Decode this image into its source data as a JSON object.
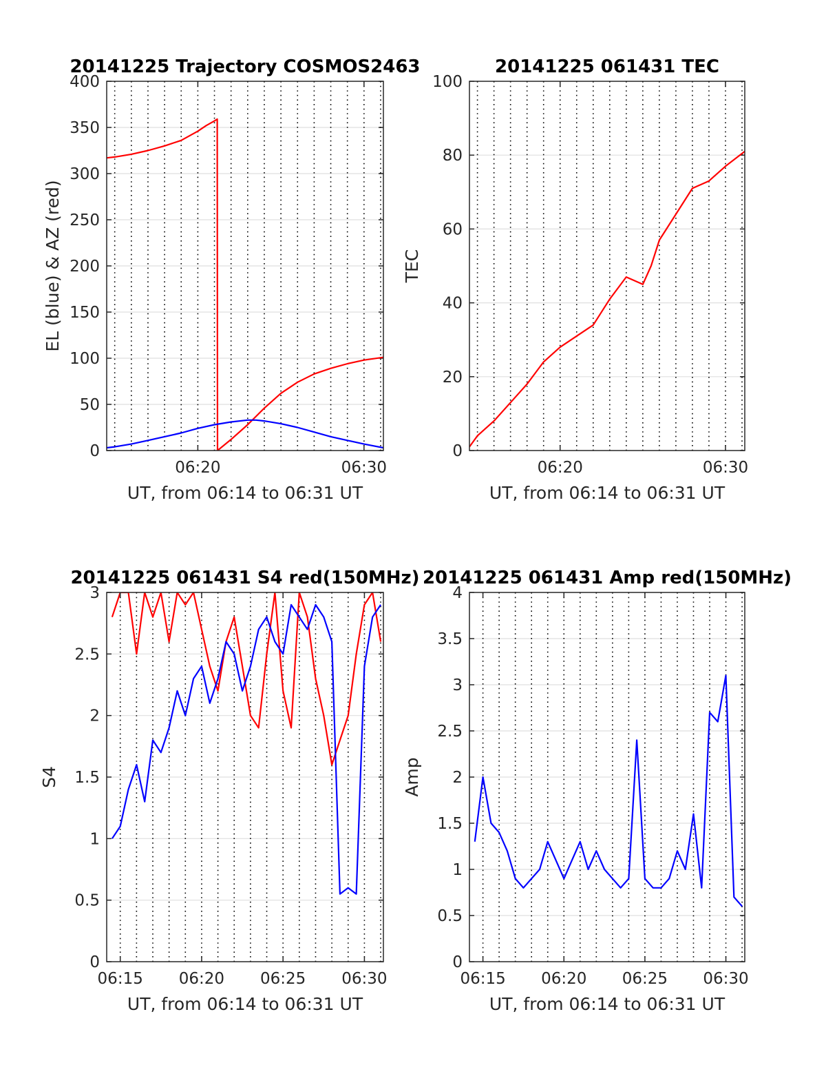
{
  "chart_data": [
    {
      "type": "line",
      "title": "20141225 Trajectory COSMOS2463",
      "xlabel": "UT, from 06:14 to 06:31 UT",
      "ylabel": "EL (blue) & AZ (red)",
      "xlim": [
        "06:14:31",
        "06:31:10"
      ],
      "ylim": [
        0,
        400
      ],
      "yticks": [
        "0",
        "50",
        "100",
        "150",
        "200",
        "250",
        "300",
        "350",
        "400"
      ],
      "xticks": [
        {
          "t": "06:20",
          "label": "06:20"
        },
        {
          "t": "06:30",
          "label": "06:30"
        }
      ],
      "series": [
        {
          "color": "#ff0000",
          "x": [
            "06:14:31",
            "06:15:00",
            "06:16:00",
            "06:17:00",
            "06:18:00",
            "06:19:00",
            "06:20:00",
            "06:20:30",
            "06:21:00",
            "06:21:10",
            "06:21:11",
            "06:22:00",
            "06:23:00",
            "06:24:00",
            "06:25:00",
            "06:26:00",
            "06:27:00",
            "06:28:00",
            "06:29:00",
            "06:30:00",
            "06:31:10"
          ],
          "y": [
            317,
            318,
            321,
            325,
            330,
            336,
            346,
            352,
            357,
            359,
            0,
            12,
            28,
            46,
            62,
            74,
            83,
            89,
            94,
            98,
            101
          ]
        },
        {
          "color": "#0000ff",
          "x": [
            "06:14:31",
            "06:15:00",
            "06:16:00",
            "06:17:00",
            "06:18:00",
            "06:19:00",
            "06:20:00",
            "06:21:00",
            "06:22:00",
            "06:23:00",
            "06:23:30",
            "06:24:00",
            "06:25:00",
            "06:26:00",
            "06:27:00",
            "06:28:00",
            "06:29:00",
            "06:30:00",
            "06:31:10"
          ],
          "y": [
            3,
            4,
            7,
            11,
            15,
            19,
            24,
            28,
            31,
            33,
            33,
            32,
            29,
            25,
            20,
            15,
            11,
            7,
            3
          ]
        }
      ]
    },
    {
      "type": "line",
      "title": "20141225 061431 TEC",
      "xlabel": "UT, from 06:14 to 06:31 UT",
      "ylabel": "TEC",
      "xlim": [
        "06:14:31",
        "06:31:10"
      ],
      "ylim": [
        0,
        100
      ],
      "yticks": [
        "0",
        "20",
        "40",
        "60",
        "80",
        "100"
      ],
      "xticks": [
        {
          "t": "06:20",
          "label": "06:20"
        },
        {
          "t": "06:30",
          "label": "06:30"
        }
      ],
      "series": [
        {
          "color": "#ff0000",
          "x": [
            "06:14:31",
            "06:15:00",
            "06:16:00",
            "06:17:00",
            "06:18:00",
            "06:19:00",
            "06:20:00",
            "06:21:00",
            "06:22:00",
            "06:23:00",
            "06:24:00",
            "06:25:00",
            "06:25:30",
            "06:26:00",
            "06:27:00",
            "06:28:00",
            "06:29:00",
            "06:30:00",
            "06:31:10"
          ],
          "y": [
            1,
            4,
            8,
            13,
            18,
            24,
            28,
            31,
            34,
            41,
            47,
            45,
            50,
            57,
            64,
            71,
            73,
            77,
            81
          ]
        }
      ]
    },
    {
      "type": "line",
      "title": "20141225 061431 S4 red(150MHz)",
      "xlabel": "UT, from 06:14 to 06:31 UT",
      "ylabel": "S4",
      "xlim": [
        "06:14:10",
        "06:31:10"
      ],
      "ylim": [
        0,
        3
      ],
      "yticks": [
        "0",
        "0.5",
        "1",
        "1.5",
        "2",
        "2.5",
        "3"
      ],
      "xticks": [
        {
          "t": "06:15",
          "label": "06:15"
        },
        {
          "t": "06:20",
          "label": "06:20"
        },
        {
          "t": "06:25",
          "label": "06:25"
        },
        {
          "t": "06:30",
          "label": "06:30"
        }
      ],
      "series": [
        {
          "color": "#ff0000",
          "x": [
            "06:14:30",
            "06:15:00",
            "06:15:30",
            "06:16:00",
            "06:16:30",
            "06:17:00",
            "06:17:30",
            "06:18:00",
            "06:18:30",
            "06:19:00",
            "06:19:30",
            "06:20:00",
            "06:20:30",
            "06:21:00",
            "06:21:30",
            "06:22:00",
            "06:22:30",
            "06:23:00",
            "06:23:30",
            "06:24:00",
            "06:24:30",
            "06:25:00",
            "06:25:30",
            "06:26:00",
            "06:26:30",
            "06:27:00",
            "06:27:30",
            "06:28:00",
            "06:28:30",
            "06:29:00",
            "06:29:30",
            "06:30:00",
            "06:30:30",
            "06:31:00"
          ],
          "y": [
            2.8,
            3.0,
            3.0,
            2.5,
            3.0,
            2.8,
            3.0,
            2.6,
            3.0,
            2.9,
            3.0,
            2.7,
            2.4,
            2.2,
            2.6,
            2.8,
            2.4,
            2.0,
            1.9,
            2.5,
            3.0,
            2.2,
            1.9,
            3.0,
            2.8,
            2.3,
            2.0,
            1.6,
            1.8,
            2.0,
            2.5,
            2.9,
            3.0,
            2.6
          ]
        },
        {
          "color": "#0000ff",
          "x": [
            "06:14:30",
            "06:15:00",
            "06:15:30",
            "06:16:00",
            "06:16:30",
            "06:17:00",
            "06:17:30",
            "06:18:00",
            "06:18:30",
            "06:19:00",
            "06:19:30",
            "06:20:00",
            "06:20:30",
            "06:21:00",
            "06:21:30",
            "06:22:00",
            "06:22:30",
            "06:23:00",
            "06:23:30",
            "06:24:00",
            "06:24:30",
            "06:25:00",
            "06:25:30",
            "06:26:00",
            "06:26:30",
            "06:27:00",
            "06:27:30",
            "06:28:00",
            "06:28:30",
            "06:29:00",
            "06:29:30",
            "06:30:00",
            "06:30:30",
            "06:31:00"
          ],
          "y": [
            1.0,
            1.1,
            1.4,
            1.6,
            1.3,
            1.8,
            1.7,
            1.9,
            2.2,
            2.0,
            2.3,
            2.4,
            2.1,
            2.3,
            2.6,
            2.5,
            2.2,
            2.4,
            2.7,
            2.8,
            2.6,
            2.5,
            2.9,
            2.8,
            2.7,
            2.9,
            2.8,
            2.6,
            0.55,
            0.6,
            0.55,
            2.4,
            2.8,
            2.9
          ]
        }
      ]
    },
    {
      "type": "line",
      "title": "20141225 061431 Amp red(150MHz)",
      "xlabel": "UT, from 06:14 to 06:31 UT",
      "ylabel": "Amp",
      "xlim": [
        "06:14:10",
        "06:31:10"
      ],
      "ylim": [
        0,
        4
      ],
      "yticks": [
        "0",
        "0.5",
        "1",
        "1.5",
        "2",
        "2.5",
        "3",
        "3.5",
        "4"
      ],
      "xticks": [
        {
          "t": "06:15",
          "label": "06:15"
        },
        {
          "t": "06:20",
          "label": "06:20"
        },
        {
          "t": "06:25",
          "label": "06:25"
        },
        {
          "t": "06:30",
          "label": "06:30"
        }
      ],
      "series": [
        {
          "color": "#0000ff",
          "x": [
            "06:14:30",
            "06:15:00",
            "06:15:30",
            "06:16:00",
            "06:16:30",
            "06:17:00",
            "06:17:30",
            "06:18:00",
            "06:18:30",
            "06:19:00",
            "06:19:30",
            "06:20:00",
            "06:20:30",
            "06:21:00",
            "06:21:30",
            "06:22:00",
            "06:22:30",
            "06:23:00",
            "06:23:30",
            "06:24:00",
            "06:24:30",
            "06:25:00",
            "06:25:30",
            "06:26:00",
            "06:26:30",
            "06:27:00",
            "06:27:30",
            "06:28:00",
            "06:28:30",
            "06:29:00",
            "06:29:30",
            "06:30:00",
            "06:30:30",
            "06:31:00"
          ],
          "y": [
            1.3,
            2.0,
            1.5,
            1.4,
            1.2,
            0.9,
            0.8,
            0.9,
            1.0,
            1.3,
            1.1,
            0.9,
            1.1,
            1.3,
            1.0,
            1.2,
            1.0,
            0.9,
            0.8,
            0.9,
            2.4,
            0.9,
            0.8,
            0.8,
            0.9,
            1.2,
            1.0,
            1.6,
            0.8,
            2.7,
            2.6,
            3.1,
            0.7,
            0.6
          ]
        }
      ]
    }
  ]
}
